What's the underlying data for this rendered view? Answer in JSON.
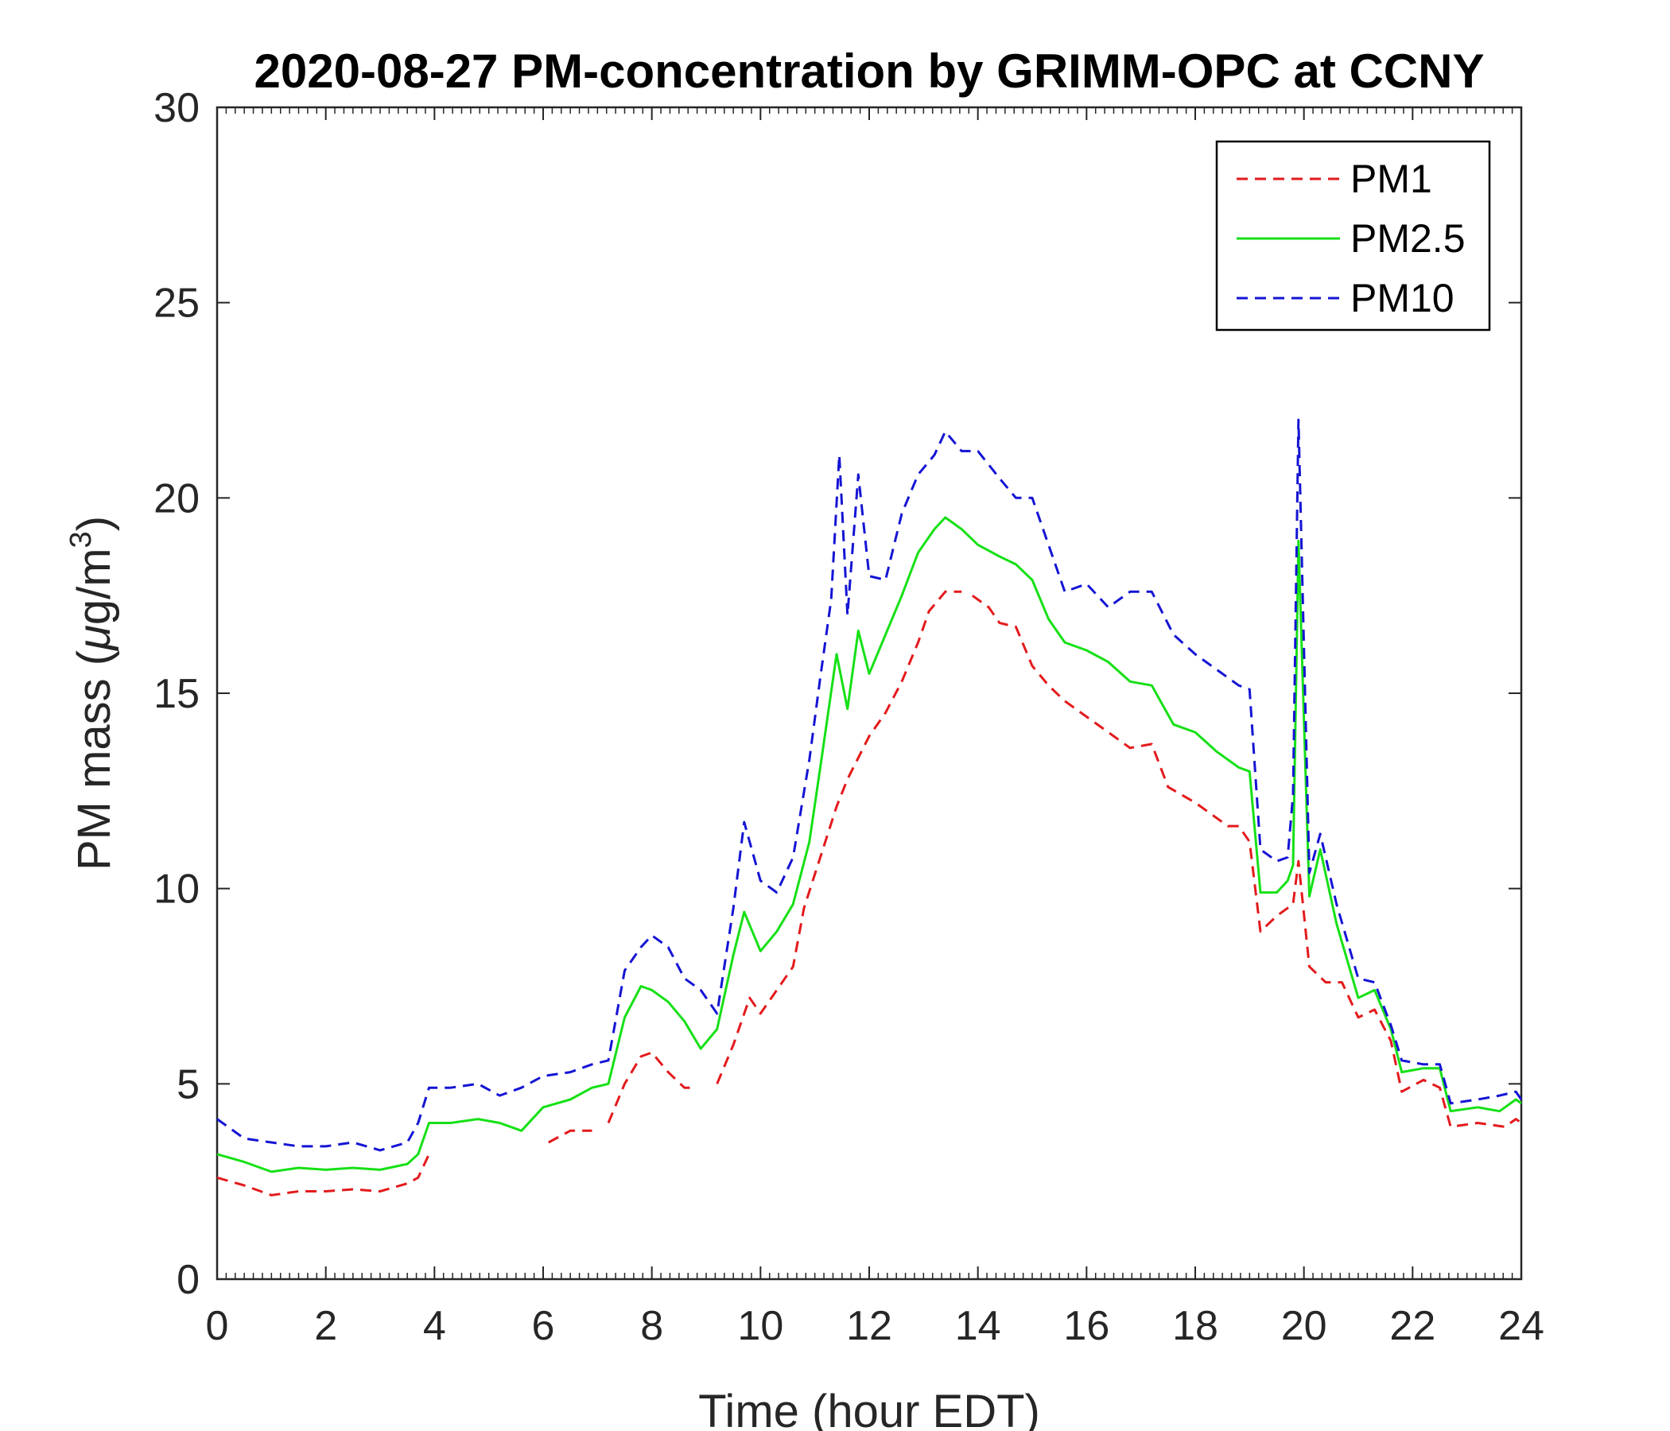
{
  "chart_data": {
    "type": "line",
    "title": "2020-08-27 PM-concentration by GRIMM-OPC at CCNY",
    "xlabel": "Time (hour EDT)",
    "ylabel_prefix": "PM mass (",
    "ylabel_mu": "μ",
    "ylabel_mid": "g/m",
    "ylabel_sup": "3",
    "ylabel_suffix": ")",
    "xlim": [
      0,
      24
    ],
    "ylim": [
      0,
      30
    ],
    "xticks": [
      0,
      2,
      4,
      6,
      8,
      10,
      12,
      14,
      16,
      18,
      20,
      22,
      24
    ],
    "yticks": [
      0,
      5,
      10,
      15,
      20,
      25,
      30
    ],
    "legend_position": "top-right",
    "series": [
      {
        "name": "PM1",
        "color": "#e31a1c",
        "style": "dashed",
        "points": [
          [
            0,
            2.6
          ],
          [
            0.5,
            2.4
          ],
          [
            1,
            2.15
          ],
          [
            1.5,
            2.25
          ],
          [
            2,
            2.25
          ],
          [
            2.5,
            2.3
          ],
          [
            3,
            2.25
          ],
          [
            3.5,
            2.45
          ],
          [
            3.7,
            2.6
          ],
          [
            3.9,
            3.2
          ],
          null,
          [
            6.1,
            3.5
          ],
          [
            6.5,
            3.8
          ],
          [
            6.9,
            3.8
          ],
          null,
          [
            7.2,
            4.0
          ],
          [
            7.5,
            5.0
          ],
          [
            7.8,
            5.7
          ],
          [
            8.0,
            5.8
          ],
          [
            8.3,
            5.3
          ],
          [
            8.6,
            4.9
          ],
          [
            8.8,
            4.9
          ],
          null,
          [
            9.2,
            5.0
          ],
          [
            9.5,
            6.0
          ],
          [
            9.8,
            7.2
          ],
          [
            10.0,
            6.8
          ],
          [
            10.3,
            7.4
          ],
          [
            10.6,
            8.0
          ],
          [
            10.8,
            9.5
          ],
          [
            11.1,
            10.8
          ],
          [
            11.4,
            12.1
          ],
          [
            11.6,
            12.8
          ],
          [
            12.0,
            13.9
          ],
          [
            12.3,
            14.5
          ],
          [
            12.6,
            15.3
          ],
          [
            12.9,
            16.3
          ],
          [
            13.1,
            17.1
          ],
          [
            13.4,
            17.6
          ],
          [
            13.7,
            17.6
          ],
          null,
          [
            13.9,
            17.5
          ],
          [
            14.2,
            17.2
          ],
          [
            14.4,
            16.8
          ],
          [
            14.7,
            16.7
          ],
          [
            15.0,
            15.7
          ],
          [
            15.3,
            15.2
          ],
          [
            15.6,
            14.8
          ],
          [
            16.0,
            14.4
          ],
          [
            16.4,
            14.0
          ],
          [
            16.8,
            13.6
          ],
          [
            17.2,
            13.7
          ],
          [
            17.5,
            12.6
          ],
          [
            18.0,
            12.2
          ],
          [
            18.4,
            11.8
          ],
          [
            18.6,
            11.6
          ],
          [
            18.8,
            11.6
          ],
          [
            19.0,
            11.2
          ],
          [
            19.2,
            8.9
          ],
          [
            19.5,
            9.3
          ],
          [
            19.8,
            9.6
          ],
          [
            19.9,
            10.7
          ],
          [
            20.1,
            8.0
          ],
          [
            20.4,
            7.6
          ],
          [
            20.7,
            7.6
          ],
          [
            21.0,
            6.7
          ],
          [
            21.3,
            6.9
          ],
          [
            21.6,
            6.1
          ],
          [
            21.8,
            4.8
          ],
          [
            22.2,
            5.1
          ],
          [
            22.5,
            4.9
          ],
          [
            22.7,
            3.9
          ],
          [
            23.2,
            4.0
          ],
          [
            23.7,
            3.9
          ],
          [
            23.9,
            4.1
          ],
          [
            24.0,
            4.0
          ]
        ]
      },
      {
        "name": "PM2.5",
        "color": "#16e016",
        "style": "solid",
        "points": [
          [
            0,
            3.2
          ],
          [
            0.5,
            3.0
          ],
          [
            1,
            2.75
          ],
          [
            1.5,
            2.85
          ],
          [
            2,
            2.8
          ],
          [
            2.5,
            2.85
          ],
          [
            3,
            2.8
          ],
          [
            3.5,
            2.95
          ],
          [
            3.7,
            3.2
          ],
          [
            3.9,
            4.0
          ],
          [
            4.3,
            4.0
          ],
          [
            4.8,
            4.1
          ],
          [
            5.2,
            4.0
          ],
          [
            5.6,
            3.8
          ],
          [
            6.0,
            4.4
          ],
          [
            6.5,
            4.6
          ],
          [
            6.9,
            4.9
          ],
          [
            7.2,
            5.0
          ],
          [
            7.5,
            6.7
          ],
          [
            7.8,
            7.5
          ],
          [
            8.0,
            7.4
          ],
          [
            8.3,
            7.1
          ],
          [
            8.6,
            6.6
          ],
          [
            8.9,
            5.9
          ],
          [
            9.2,
            6.4
          ],
          [
            9.5,
            8.3
          ],
          [
            9.7,
            9.4
          ],
          [
            10.0,
            8.4
          ],
          [
            10.3,
            8.9
          ],
          [
            10.6,
            9.6
          ],
          [
            10.9,
            11.2
          ],
          [
            11.1,
            13.1
          ],
          [
            11.4,
            16.0
          ],
          [
            11.6,
            14.6
          ],
          [
            11.8,
            16.6
          ],
          [
            12.0,
            15.5
          ],
          [
            12.3,
            16.5
          ],
          [
            12.6,
            17.5
          ],
          [
            12.9,
            18.6
          ],
          [
            13.2,
            19.2
          ],
          [
            13.4,
            19.5
          ],
          [
            13.7,
            19.2
          ],
          [
            14.0,
            18.8
          ],
          [
            14.4,
            18.5
          ],
          [
            14.7,
            18.3
          ],
          [
            15.0,
            17.9
          ],
          [
            15.3,
            16.9
          ],
          [
            15.6,
            16.3
          ],
          [
            16.0,
            16.1
          ],
          [
            16.4,
            15.8
          ],
          [
            16.8,
            15.3
          ],
          [
            17.2,
            15.2
          ],
          [
            17.6,
            14.2
          ],
          [
            18.0,
            14.0
          ],
          [
            18.4,
            13.5
          ],
          [
            18.8,
            13.1
          ],
          [
            19.0,
            13.0
          ],
          [
            19.2,
            9.9
          ],
          [
            19.5,
            9.9
          ],
          [
            19.7,
            10.2
          ],
          [
            19.8,
            10.6
          ],
          [
            19.9,
            18.9
          ],
          [
            20.1,
            9.8
          ],
          [
            20.3,
            11.0
          ],
          [
            20.6,
            9.1
          ],
          [
            21.0,
            7.2
          ],
          [
            21.3,
            7.4
          ],
          [
            21.6,
            6.4
          ],
          [
            21.8,
            5.3
          ],
          [
            22.2,
            5.4
          ],
          [
            22.5,
            5.4
          ],
          [
            22.7,
            4.3
          ],
          [
            23.2,
            4.4
          ],
          [
            23.6,
            4.3
          ],
          [
            23.9,
            4.6
          ],
          [
            24.0,
            4.5
          ]
        ]
      },
      {
        "name": "PM10",
        "color": "#1414d4",
        "style": "dashed",
        "points": [
          [
            0,
            4.1
          ],
          [
            0.5,
            3.6
          ],
          [
            1,
            3.5
          ],
          [
            1.5,
            3.4
          ],
          [
            2,
            3.4
          ],
          [
            2.5,
            3.5
          ],
          [
            3,
            3.3
          ],
          [
            3.5,
            3.5
          ],
          [
            3.7,
            4.0
          ],
          [
            3.9,
            4.9
          ],
          [
            4.3,
            4.9
          ],
          [
            4.8,
            5.0
          ],
          [
            5.2,
            4.7
          ],
          [
            5.6,
            4.9
          ],
          [
            6.0,
            5.2
          ],
          [
            6.5,
            5.3
          ],
          [
            6.9,
            5.5
          ],
          [
            7.2,
            5.6
          ],
          [
            7.5,
            7.9
          ],
          [
            7.8,
            8.5
          ],
          [
            8.0,
            8.8
          ],
          [
            8.3,
            8.5
          ],
          [
            8.6,
            7.7
          ],
          [
            8.9,
            7.4
          ],
          [
            9.2,
            6.8
          ],
          [
            9.5,
            9.5
          ],
          [
            9.7,
            11.7
          ],
          [
            10.0,
            10.2
          ],
          [
            10.3,
            9.9
          ],
          [
            10.6,
            10.8
          ],
          [
            10.9,
            13.3
          ],
          [
            11.1,
            15.4
          ],
          [
            11.3,
            17.4
          ],
          [
            11.45,
            21.1
          ],
          [
            11.6,
            17.0
          ],
          [
            11.8,
            20.6
          ],
          [
            12.0,
            18.0
          ],
          [
            12.3,
            17.9
          ],
          [
            12.6,
            19.6
          ],
          [
            12.9,
            20.6
          ],
          [
            13.2,
            21.1
          ],
          [
            13.4,
            21.7
          ],
          [
            13.7,
            21.2
          ],
          [
            14.0,
            21.2
          ],
          [
            14.4,
            20.5
          ],
          [
            14.7,
            20.0
          ],
          [
            15.0,
            20.0
          ],
          [
            15.3,
            18.8
          ],
          [
            15.6,
            17.6
          ],
          [
            16.0,
            17.8
          ],
          [
            16.4,
            17.2
          ],
          [
            16.8,
            17.6
          ],
          [
            17.2,
            17.6
          ],
          [
            17.6,
            16.5
          ],
          [
            18.0,
            16.0
          ],
          [
            18.4,
            15.6
          ],
          [
            18.8,
            15.2
          ],
          [
            19.0,
            15.1
          ],
          [
            19.2,
            11.0
          ],
          [
            19.5,
            10.7
          ],
          [
            19.7,
            10.8
          ],
          [
            19.8,
            12.4
          ],
          [
            19.9,
            22.0
          ],
          [
            20.1,
            10.4
          ],
          [
            20.3,
            11.4
          ],
          [
            20.6,
            9.6
          ],
          [
            21.0,
            7.7
          ],
          [
            21.3,
            7.6
          ],
          [
            21.6,
            6.5
          ],
          [
            21.8,
            5.6
          ],
          [
            22.2,
            5.5
          ],
          [
            22.5,
            5.5
          ],
          [
            22.7,
            4.5
          ],
          [
            23.2,
            4.6
          ],
          [
            23.6,
            4.7
          ],
          [
            23.9,
            4.8
          ],
          [
            24.0,
            4.6
          ]
        ]
      }
    ]
  }
}
